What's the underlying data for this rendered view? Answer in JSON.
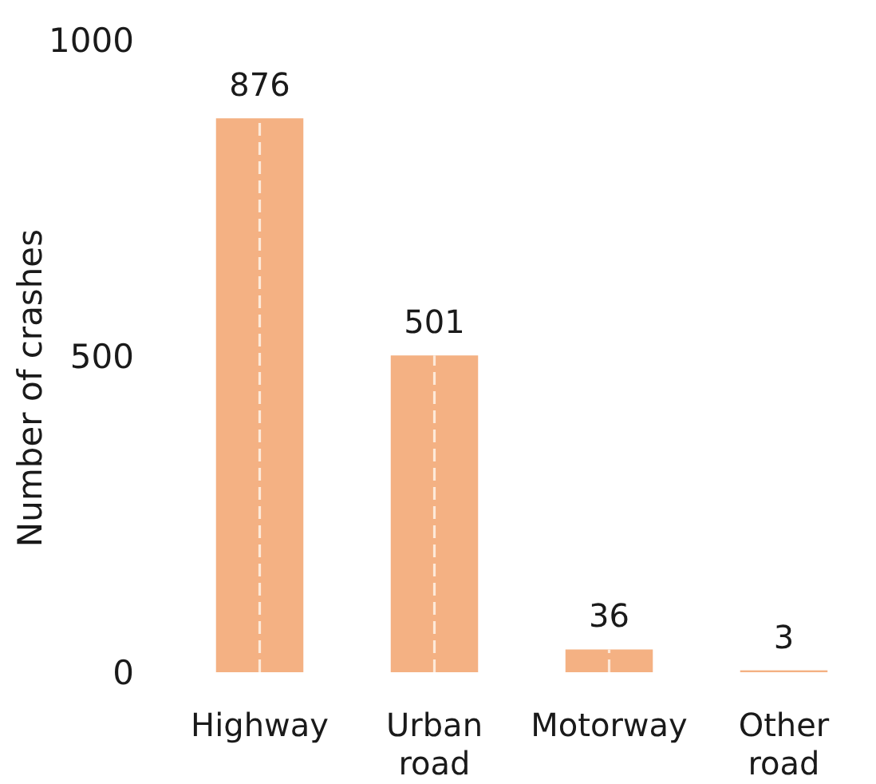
{
  "chart_data": {
    "type": "bar",
    "ylabel": "Number of crashes",
    "categories": [
      "Highway",
      "Urban road",
      "Motorway",
      "Other road"
    ],
    "values": [
      876,
      501,
      36,
      3
    ],
    "color": "#f4b183",
    "ylim": [
      0,
      1000
    ],
    "yticks": [
      0,
      500,
      1000
    ],
    "data_labels": true
  }
}
